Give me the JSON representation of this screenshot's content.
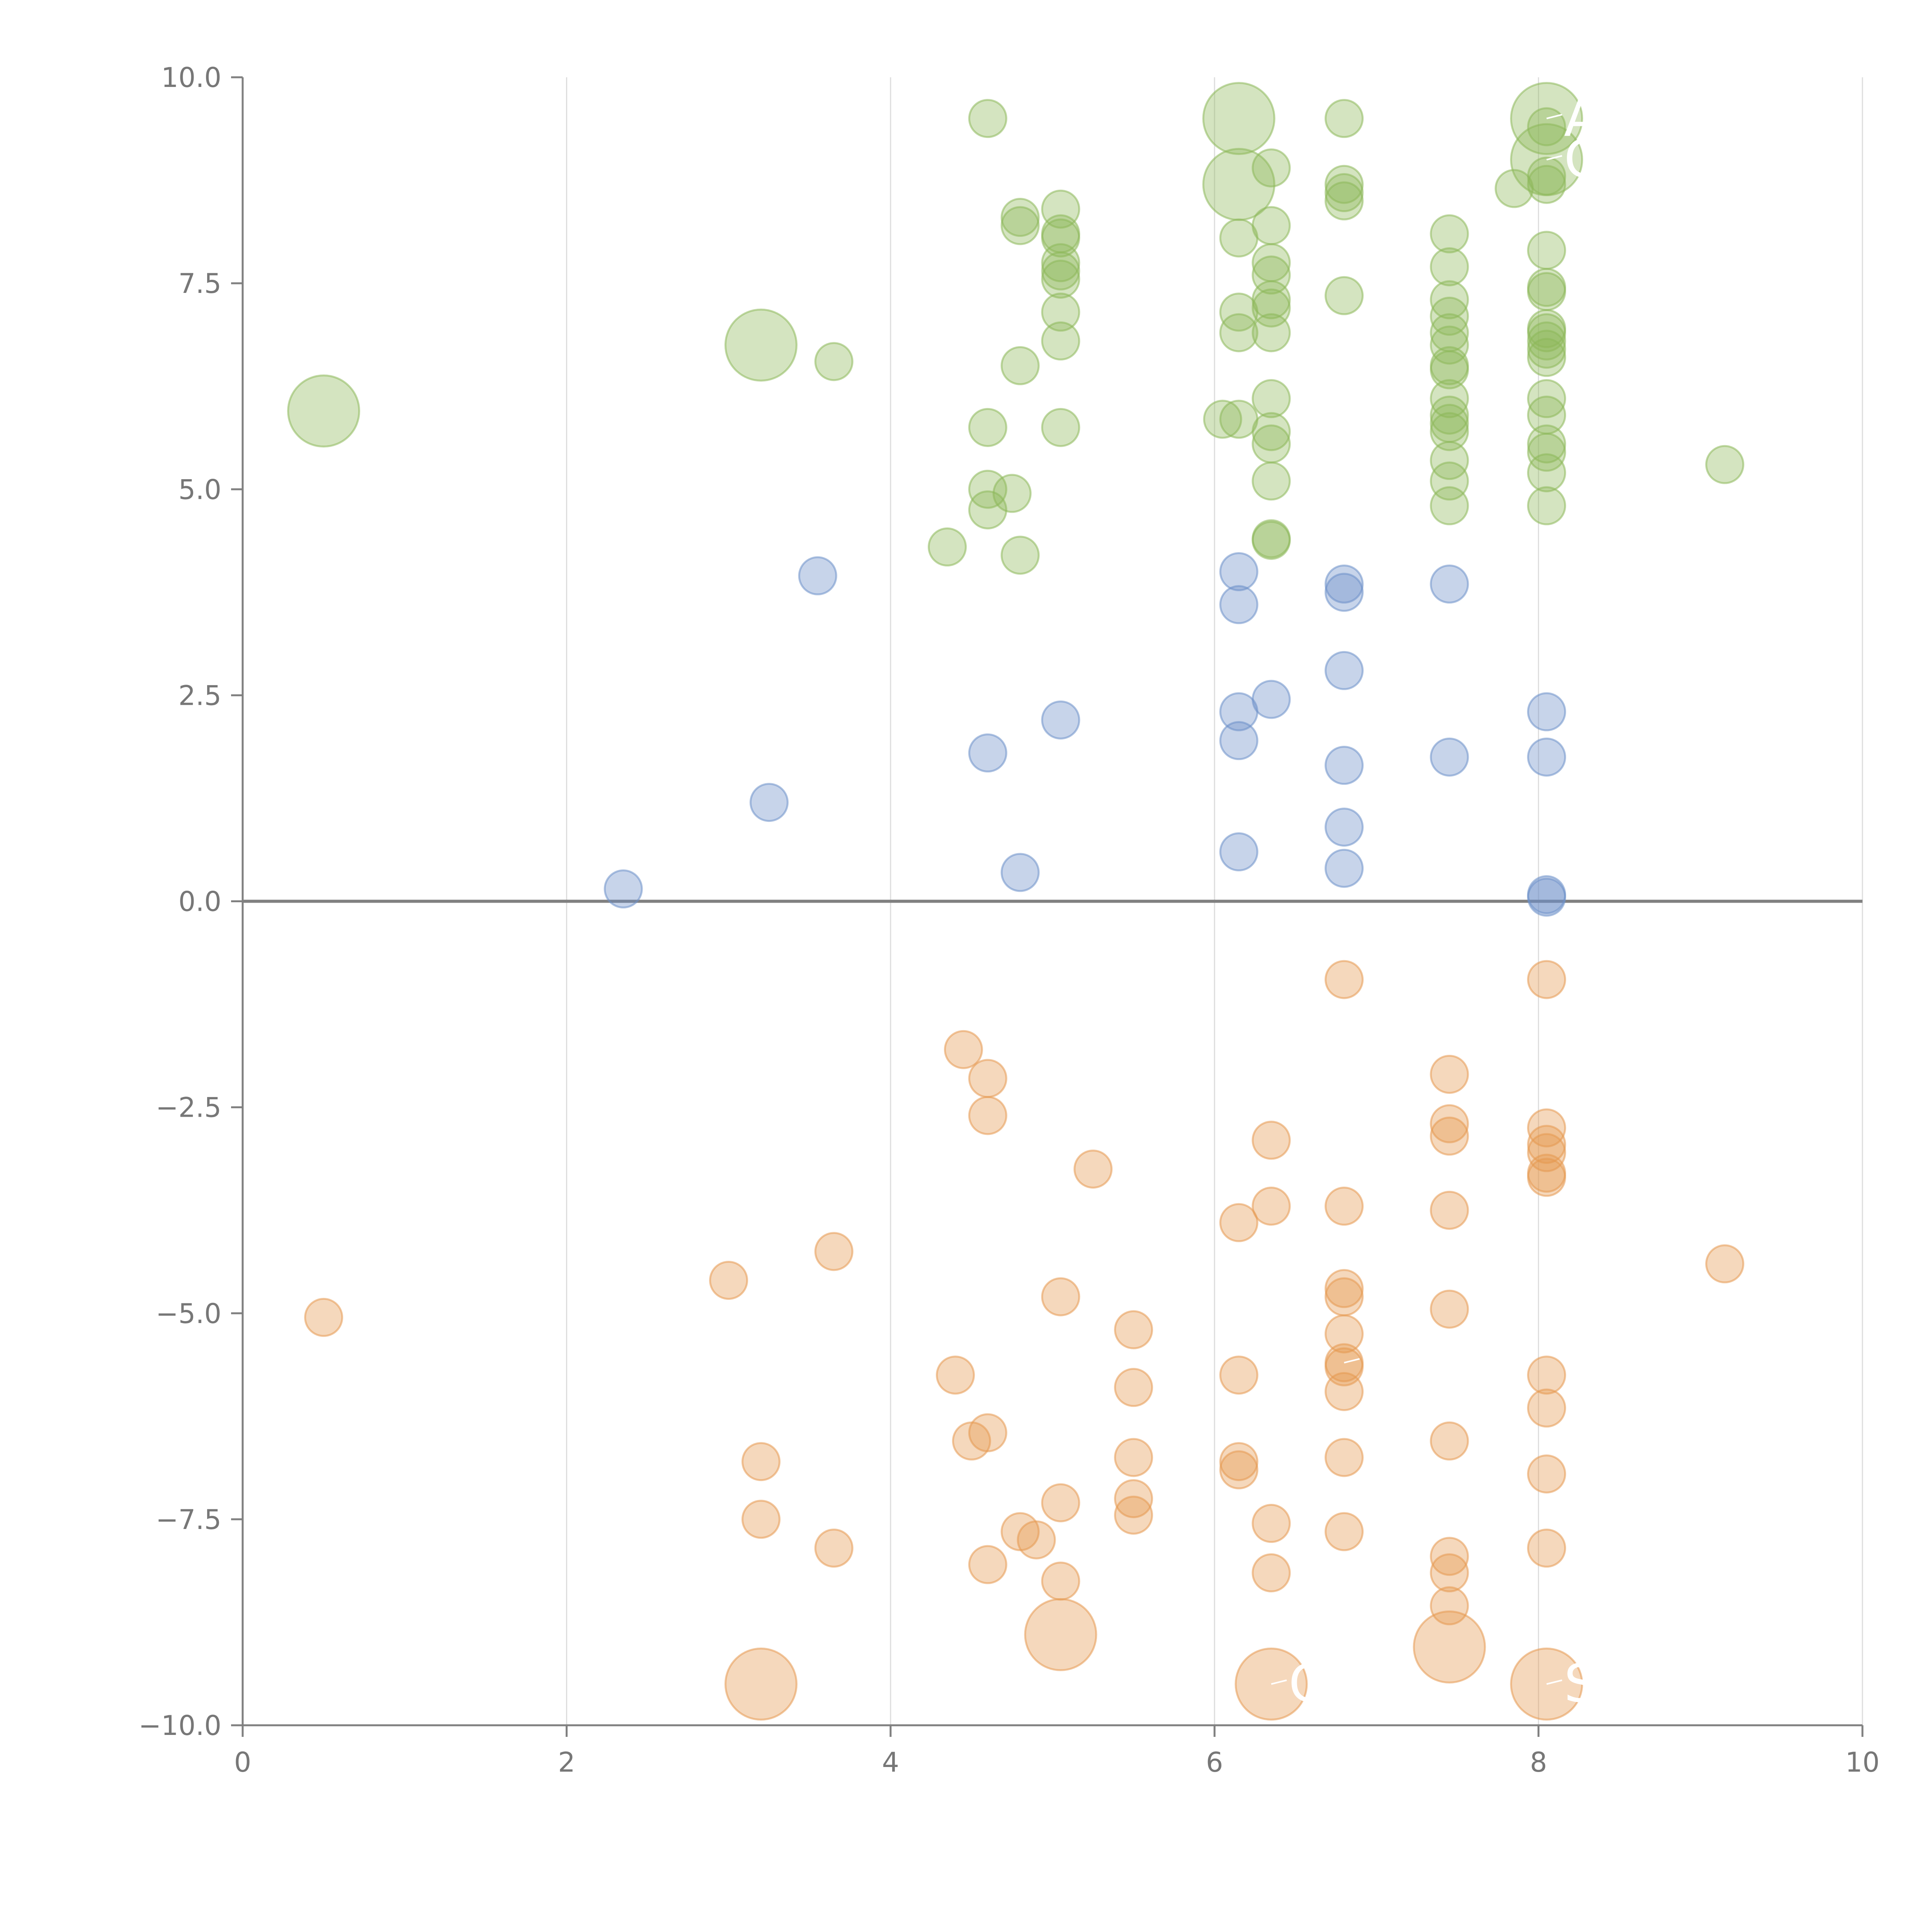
{
  "chart_data": {
    "type": "scatter",
    "title": "",
    "xlabel": "",
    "ylabel": "",
    "xlim": [
      0,
      10
    ],
    "ylim": [
      -10,
      10
    ],
    "x_ticks": [
      0,
      2,
      4,
      6,
      8,
      10
    ],
    "x_tick_labels": [
      "0",
      "2",
      "4",
      "6",
      "8",
      "10"
    ],
    "y_ticks": [
      10,
      7.5,
      5,
      2.5,
      0,
      -2.5,
      -5,
      -7.5,
      -10
    ],
    "y_tick_labels": [
      "10.0",
      "7.5",
      "5.0",
      "2.5",
      "0.0",
      "−2.5",
      "−5.0",
      "−7.5",
      "−10.0"
    ],
    "grid": "vertical",
    "zero_line": true,
    "colors": {
      "green": "#8db85a",
      "blue": "#6b8fc9",
      "orange": "#e69950",
      "axis": "#808080",
      "grid": "#dddddd"
    },
    "series": [
      {
        "name": "green",
        "color": "#8db85a",
        "points": [
          [
            8.05,
            9.5,
            2
          ],
          [
            8.05,
            9.0,
            2
          ],
          [
            6.15,
            9.5,
            2
          ],
          [
            6.15,
            8.7,
            2
          ],
          [
            3.2,
            6.75,
            2
          ],
          [
            0.5,
            5.95,
            2
          ],
          [
            4.6,
            9.5,
            1
          ],
          [
            6.35,
            8.9,
            1
          ],
          [
            6.8,
            9.5,
            1
          ],
          [
            6.8,
            8.7,
            1
          ],
          [
            6.8,
            8.6,
            1
          ],
          [
            6.8,
            8.5,
            1
          ],
          [
            7.85,
            8.65,
            1
          ],
          [
            8.05,
            9.4,
            1
          ],
          [
            8.05,
            8.7,
            1
          ],
          [
            8.05,
            8.8,
            1
          ],
          [
            4.8,
            8.3,
            1
          ],
          [
            4.8,
            8.2,
            1
          ],
          [
            5.05,
            8.4,
            1
          ],
          [
            5.05,
            8.1,
            1
          ],
          [
            5.05,
            8.05,
            1
          ],
          [
            5.05,
            7.75,
            1
          ],
          [
            5.05,
            7.65,
            1
          ],
          [
            5.05,
            7.55,
            1
          ],
          [
            5.05,
            7.15,
            1
          ],
          [
            5.05,
            6.8,
            1
          ],
          [
            4.8,
            6.5,
            1
          ],
          [
            3.65,
            6.55,
            1
          ],
          [
            6.15,
            8.05,
            1
          ],
          [
            6.15,
            7.15,
            1
          ],
          [
            6.15,
            6.9,
            1
          ],
          [
            6.35,
            8.2,
            1
          ],
          [
            6.35,
            7.75,
            1
          ],
          [
            6.35,
            7.6,
            1
          ],
          [
            6.35,
            7.3,
            1
          ],
          [
            6.35,
            7.2,
            1
          ],
          [
            6.35,
            6.9,
            1
          ],
          [
            6.35,
            6.1,
            1
          ],
          [
            6.35,
            5.7,
            1
          ],
          [
            6.35,
            5.55,
            1
          ],
          [
            6.35,
            5.1,
            1
          ],
          [
            6.35,
            4.4,
            1
          ],
          [
            6.35,
            4.38,
            1
          ],
          [
            6.05,
            5.85,
            1
          ],
          [
            6.15,
            5.85,
            1
          ],
          [
            6.8,
            7.35,
            1
          ],
          [
            7.45,
            8.1,
            1
          ],
          [
            7.45,
            7.7,
            1
          ],
          [
            7.45,
            7.3,
            1
          ],
          [
            7.45,
            7.1,
            1
          ],
          [
            7.45,
            6.9,
            1
          ],
          [
            7.45,
            6.75,
            1
          ],
          [
            7.45,
            6.5,
            1
          ],
          [
            7.45,
            6.45,
            1
          ],
          [
            7.45,
            6.1,
            1
          ],
          [
            7.45,
            5.9,
            1
          ],
          [
            7.45,
            5.8,
            1
          ],
          [
            7.45,
            5.7,
            1
          ],
          [
            7.45,
            5.35,
            1
          ],
          [
            7.45,
            5.1,
            1
          ],
          [
            7.45,
            4.8,
            1
          ],
          [
            8.05,
            7.9,
            1
          ],
          [
            8.05,
            7.45,
            1
          ],
          [
            8.05,
            7.4,
            1
          ],
          [
            8.05,
            6.95,
            1
          ],
          [
            8.05,
            6.9,
            1
          ],
          [
            8.05,
            6.8,
            1
          ],
          [
            8.05,
            6.7,
            1
          ],
          [
            8.05,
            6.6,
            1
          ],
          [
            8.05,
            6.1,
            1
          ],
          [
            8.05,
            5.9,
            1
          ],
          [
            8.05,
            5.55,
            1
          ],
          [
            8.05,
            5.45,
            1
          ],
          [
            8.05,
            5.2,
            1
          ],
          [
            8.05,
            4.8,
            1
          ],
          [
            9.15,
            5.3,
            1
          ],
          [
            4.6,
            5.75,
            1
          ],
          [
            5.05,
            5.75,
            1
          ],
          [
            4.6,
            5.0,
            1
          ],
          [
            4.75,
            4.95,
            1
          ],
          [
            4.6,
            4.75,
            1
          ],
          [
            4.35,
            4.3,
            1
          ],
          [
            4.8,
            4.2,
            1
          ]
        ]
      },
      {
        "name": "blue",
        "color": "#6b8fc9",
        "points": [
          [
            3.55,
            3.95,
            1
          ],
          [
            6.15,
            4.0,
            1
          ],
          [
            6.15,
            3.6,
            1
          ],
          [
            6.8,
            3.85,
            1
          ],
          [
            6.8,
            3.75,
            1
          ],
          [
            7.45,
            3.85,
            1
          ],
          [
            6.8,
            2.8,
            1
          ],
          [
            6.35,
            2.45,
            1
          ],
          [
            6.15,
            2.3,
            1
          ],
          [
            6.15,
            1.95,
            1
          ],
          [
            8.05,
            2.3,
            1
          ],
          [
            5.05,
            2.2,
            1
          ],
          [
            4.6,
            1.8,
            1
          ],
          [
            7.45,
            1.75,
            1
          ],
          [
            8.05,
            1.75,
            1
          ],
          [
            6.8,
            1.65,
            1
          ],
          [
            3.25,
            1.2,
            1
          ],
          [
            6.8,
            0.9,
            1
          ],
          [
            6.15,
            0.6,
            1
          ],
          [
            6.8,
            0.4,
            1
          ],
          [
            4.8,
            0.35,
            1
          ],
          [
            2.35,
            0.15,
            1
          ],
          [
            8.05,
            0.05,
            1
          ],
          [
            8.05,
            0.08,
            1
          ]
        ]
      },
      {
        "name": "orange",
        "color": "#e69950",
        "points": [
          [
            6.8,
            -0.95,
            1
          ],
          [
            8.05,
            -0.95,
            1
          ],
          [
            4.45,
            -1.8,
            1
          ],
          [
            4.6,
            -2.15,
            1
          ],
          [
            4.6,
            -2.6,
            1
          ],
          [
            7.45,
            -2.1,
            1
          ],
          [
            7.45,
            -2.7,
            1
          ],
          [
            7.45,
            -2.85,
            1
          ],
          [
            6.35,
            -2.9,
            1
          ],
          [
            8.05,
            -2.75,
            1
          ],
          [
            8.05,
            -2.95,
            1
          ],
          [
            8.05,
            -3.05,
            1
          ],
          [
            8.05,
            -3.3,
            1
          ],
          [
            8.05,
            -3.35,
            1
          ],
          [
            5.25,
            -3.25,
            1
          ],
          [
            6.15,
            -3.9,
            1
          ],
          [
            6.35,
            -3.7,
            1
          ],
          [
            6.8,
            -3.7,
            1
          ],
          [
            7.45,
            -3.75,
            1
          ],
          [
            3.65,
            -4.25,
            1
          ],
          [
            3.0,
            -4.6,
            1
          ],
          [
            9.15,
            -4.4,
            1
          ],
          [
            0.5,
            -5.05,
            1
          ],
          [
            5.05,
            -4.8,
            1
          ],
          [
            6.8,
            -4.7,
            1
          ],
          [
            6.8,
            -4.8,
            1
          ],
          [
            7.45,
            -4.95,
            1
          ],
          [
            5.5,
            -5.2,
            1
          ],
          [
            6.8,
            -5.25,
            1
          ],
          [
            6.8,
            -5.6,
            1
          ],
          [
            6.8,
            -5.65,
            1
          ],
          [
            4.4,
            -5.75,
            1
          ],
          [
            5.5,
            -5.9,
            1
          ],
          [
            6.15,
            -5.75,
            1
          ],
          [
            6.8,
            -5.95,
            1
          ],
          [
            8.05,
            -5.75,
            1
          ],
          [
            8.05,
            -6.15,
            1
          ],
          [
            4.6,
            -6.45,
            1
          ],
          [
            4.5,
            -6.55,
            1
          ],
          [
            7.45,
            -6.55,
            1
          ],
          [
            5.5,
            -6.75,
            1
          ],
          [
            6.8,
            -6.75,
            1
          ],
          [
            3.2,
            -6.8,
            1
          ],
          [
            6.15,
            -6.8,
            1
          ],
          [
            6.15,
            -6.9,
            1
          ],
          [
            8.05,
            -6.95,
            1
          ],
          [
            5.5,
            -7.25,
            1
          ],
          [
            5.5,
            -7.45,
            1
          ],
          [
            5.05,
            -7.3,
            1
          ],
          [
            3.2,
            -7.5,
            1
          ],
          [
            6.35,
            -7.55,
            1
          ],
          [
            4.8,
            -7.65,
            1
          ],
          [
            4.9,
            -7.75,
            1
          ],
          [
            6.8,
            -7.65,
            1
          ],
          [
            3.65,
            -7.85,
            1
          ],
          [
            8.05,
            -7.85,
            1
          ],
          [
            7.45,
            -7.95,
            1
          ],
          [
            4.6,
            -8.05,
            1
          ],
          [
            7.45,
            -8.15,
            1
          ],
          [
            6.35,
            -8.15,
            1
          ],
          [
            5.05,
            -8.25,
            1
          ],
          [
            7.45,
            -8.55,
            1
          ],
          [
            5.05,
            -8.9,
            2
          ],
          [
            7.45,
            -9.05,
            2
          ],
          [
            3.2,
            -9.5,
            2
          ],
          [
            6.35,
            -9.5,
            2
          ],
          [
            8.05,
            -9.5,
            2
          ]
        ]
      }
    ],
    "annotations": [
      {
        "text": "A",
        "x": 8.05,
        "y": 9.5
      },
      {
        "text": "C",
        "x": 8.05,
        "y": 9.0
      },
      {
        "text": "E",
        "x": 6.8,
        "y": -5.6
      },
      {
        "text": "S",
        "x": 8.05,
        "y": -9.5
      },
      {
        "text": "G",
        "x": 6.35,
        "y": -9.5
      }
    ]
  }
}
